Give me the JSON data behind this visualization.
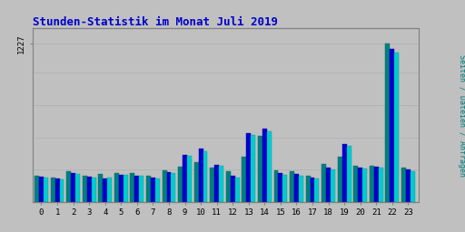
{
  "title": "Stunden-Statistik im Monat Juli 2019",
  "title_color": "#0000cc",
  "title_fontsize": 9,
  "ylabel_right": "Seiten / Dateien / Anfragen",
  "background_color": "#c0c0c0",
  "bar_width": 0.28,
  "hours": [
    0,
    1,
    2,
    3,
    4,
    5,
    6,
    7,
    8,
    9,
    10,
    11,
    12,
    13,
    14,
    15,
    16,
    17,
    18,
    19,
    20,
    21,
    22,
    23
  ],
  "seiten": [
    200,
    185,
    240,
    205,
    215,
    225,
    220,
    205,
    245,
    275,
    310,
    265,
    240,
    350,
    510,
    245,
    240,
    200,
    295,
    350,
    280,
    280,
    1227,
    265
  ],
  "dateien": [
    195,
    178,
    225,
    192,
    182,
    210,
    205,
    188,
    232,
    365,
    415,
    288,
    200,
    530,
    565,
    222,
    218,
    188,
    263,
    450,
    266,
    272,
    1185,
    250
  ],
  "anfragen": [
    190,
    172,
    215,
    185,
    185,
    208,
    200,
    180,
    225,
    355,
    395,
    278,
    188,
    515,
    548,
    212,
    205,
    182,
    253,
    435,
    258,
    265,
    1158,
    240
  ],
  "seiten_color": "#008080",
  "dateien_color": "#0000cc",
  "anfragen_color": "#00cccc",
  "grid_color": "#b0b0b0",
  "ylim": [
    0,
    1350
  ],
  "ytick_val": 1227
}
